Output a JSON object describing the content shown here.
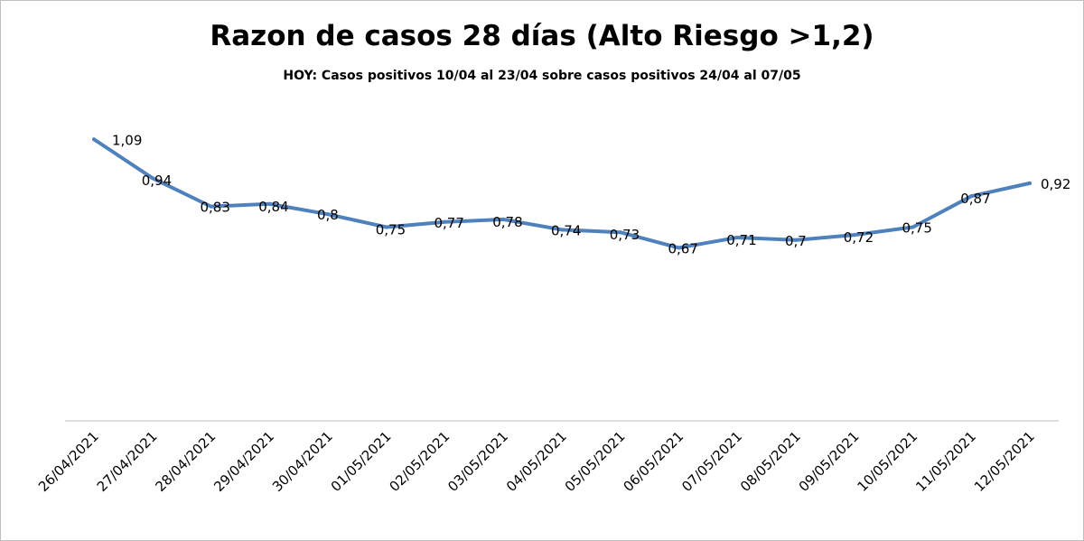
{
  "chart_data": {
    "type": "line",
    "title": "Razon de casos 28 días (Alto Riesgo >1,2)",
    "subtitle": "HOY: Casos positivos 10/04 al 23/04 sobre casos positivos 24/04 al 07/05",
    "xlabel": "",
    "ylabel": "",
    "ylim": [
      0,
      1.4
    ],
    "grid": false,
    "legend": "none",
    "categories": [
      "26/04/2021",
      "27/04/2021",
      "28/04/2021",
      "29/04/2021",
      "30/04/2021",
      "01/05/2021",
      "02/05/2021",
      "03/05/2021",
      "04/05/2021",
      "05/05/2021",
      "06/05/2021",
      "07/05/2021",
      "08/05/2021",
      "09/05/2021",
      "10/05/2021",
      "11/05/2021",
      "12/05/2021"
    ],
    "series": [
      {
        "name": "Razon",
        "color": "#4f81bd",
        "values": [
          1.09,
          0.94,
          0.83,
          0.84,
          0.8,
          0.75,
          0.77,
          0.78,
          0.74,
          0.73,
          0.67,
          0.71,
          0.7,
          0.72,
          0.75,
          0.87,
          0.92
        ],
        "labels": [
          "1,09",
          "0,94",
          "0,83",
          "0,84",
          "0,8",
          "0,75",
          "0,77",
          "0,78",
          "0,74",
          "0,73",
          "0,67",
          "0,71",
          "0,7",
          "0,72",
          "0,75",
          "0,87",
          "0,92"
        ]
      }
    ]
  }
}
